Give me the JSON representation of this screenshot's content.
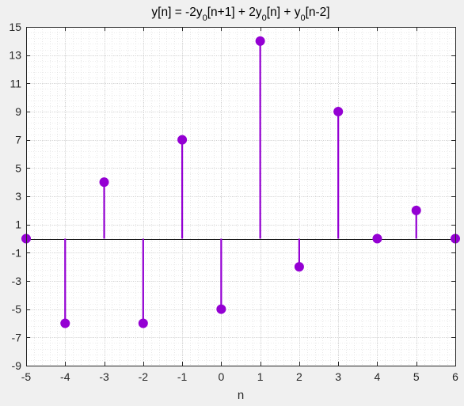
{
  "chart_data": {
    "type": "stem",
    "title_parts": [
      {
        "text": "y[n] = -2y"
      },
      {
        "text": "0",
        "sub": true
      },
      {
        "text": "[n+1] + 2y"
      },
      {
        "text": "0",
        "sub": true
      },
      {
        "text": "[n] + y"
      },
      {
        "text": "0",
        "sub": true
      },
      {
        "text": "[n-2]"
      }
    ],
    "xlabel": "n",
    "ylabel": "",
    "xlim": [
      -5,
      6
    ],
    "ylim": [
      -9,
      15
    ],
    "xticks": [
      -5,
      -4,
      -3,
      -2,
      -1,
      0,
      1,
      2,
      3,
      4,
      5,
      6
    ],
    "yticks": [
      -9,
      -7,
      -5,
      -3,
      -1,
      1,
      3,
      5,
      7,
      9,
      11,
      13,
      15
    ],
    "grid": true,
    "minor_grid": true,
    "x": [
      -5,
      -4,
      -3,
      -2,
      -1,
      0,
      1,
      2,
      3,
      4,
      5,
      6
    ],
    "y": [
      0,
      -6,
      4,
      -6,
      7,
      -5,
      14,
      -2,
      9,
      0,
      2,
      0
    ],
    "series_color": "#9400d3"
  }
}
